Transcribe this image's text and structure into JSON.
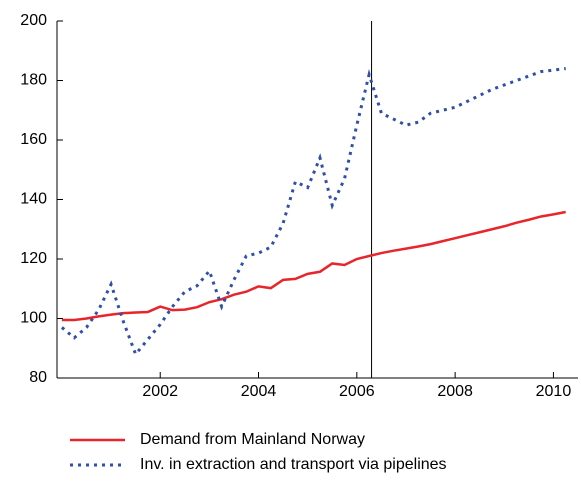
{
  "chart_data": {
    "type": "line",
    "x": [
      2000,
      2000.25,
      2000.5,
      2000.75,
      2001,
      2001.25,
      2001.5,
      2001.75,
      2002,
      2002.25,
      2002.5,
      2002.75,
      2003,
      2003.25,
      2003.5,
      2003.75,
      2004,
      2004.25,
      2004.5,
      2004.75,
      2005,
      2005.25,
      2005.5,
      2005.75,
      2006,
      2006.25,
      2006.5,
      2006.75,
      2007,
      2007.25,
      2007.5,
      2007.75,
      2008,
      2008.25,
      2008.5,
      2008.75,
      2009,
      2009.25,
      2009.5,
      2009.75,
      2010,
      2010.25
    ],
    "series": [
      {
        "name": "Demand from Mainland Norway",
        "color": "#e8252a",
        "style": "solid",
        "values": [
          99.5,
          99.5,
          100,
          100.7,
          101.3,
          101.8,
          102,
          102.2,
          104,
          102.8,
          103,
          103.8,
          105.5,
          106.5,
          108,
          109,
          110.8,
          110.2,
          113,
          113.3,
          115,
          115.7,
          118.5,
          118,
          120,
          121,
          122,
          122.8,
          123.5,
          124.2,
          125,
          126,
          127,
          128,
          129,
          130,
          131,
          132.2,
          133.2,
          134.3,
          135,
          135.8
        ]
      },
      {
        "name": "Inv. in extraction and transport via pipelines",
        "color": "#2f4fa8",
        "style": "dotted",
        "values": [
          97,
          93.5,
          97,
          103,
          111.5,
          99,
          88,
          93,
          98,
          104,
          109,
          111,
          116,
          104,
          113,
          121,
          122,
          124,
          132,
          146,
          144,
          154,
          138,
          147,
          165,
          182,
          169,
          167,
          165,
          166,
          169,
          170,
          171,
          173,
          175,
          177,
          178.5,
          180,
          181.5,
          183,
          183.5,
          184
        ]
      }
    ],
    "xlim": [
      1999.9,
      2010.5
    ],
    "xticks": [
      2002,
      2004,
      2006,
      2008,
      2010
    ],
    "ylim": [
      80,
      200
    ],
    "yticks": [
      80,
      100,
      120,
      140,
      160,
      180,
      200
    ],
    "vline": 2006.3
  }
}
